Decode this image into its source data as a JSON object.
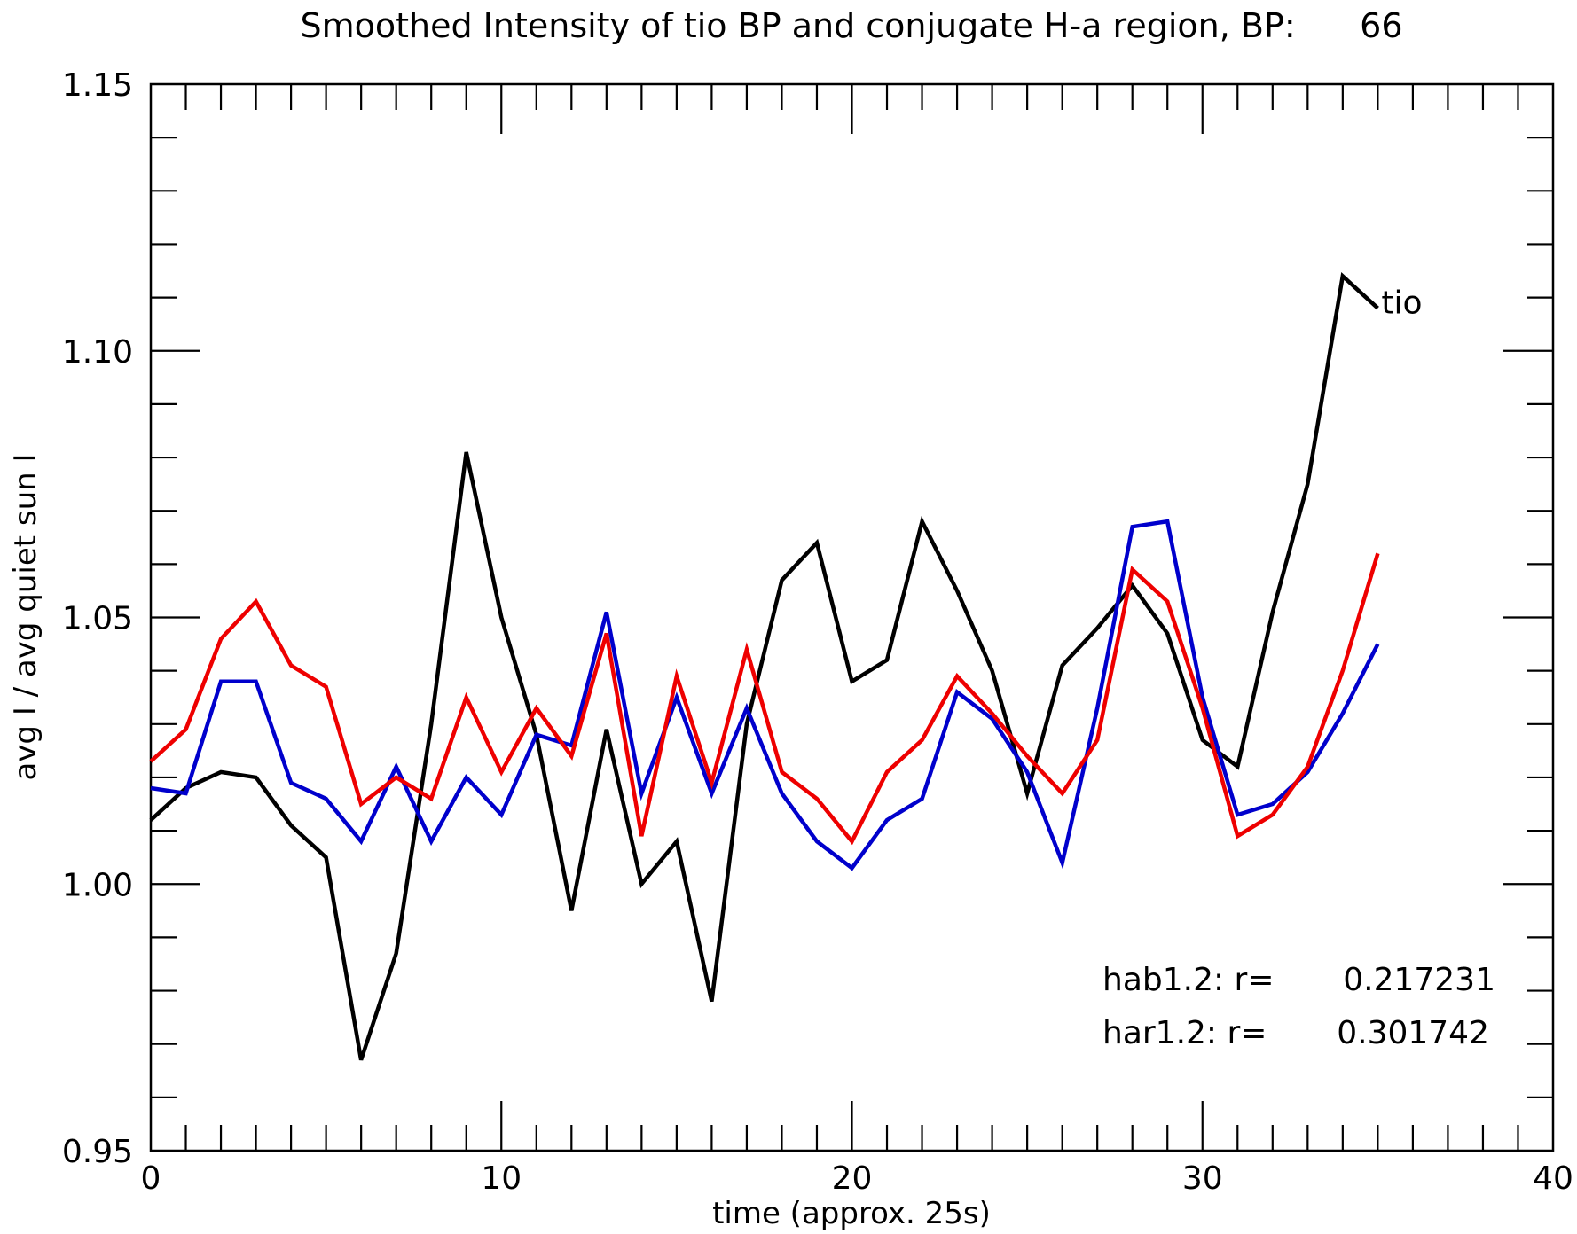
{
  "chart_data": {
    "type": "line",
    "title": "Smoothed Intensity of tio BP and conjugate H-a region, BP:      66",
    "xlabel": "time (approx. 25s)",
    "ylabel": "avg I / avg quiet sun I",
    "xlim": [
      0,
      40
    ],
    "ylim": [
      0.95,
      1.15
    ],
    "x_ticks": [
      "0",
      "10",
      "20",
      "30",
      "40"
    ],
    "y_ticks": [
      "0.95",
      "1.00",
      "1.05",
      "1.10",
      "1.15"
    ],
    "grid": false,
    "annotations": [
      {
        "label": "hab1.2: r=",
        "value": "0.217231"
      },
      {
        "label": "har1.2: r=",
        "value": "0.301742"
      }
    ],
    "series": [
      {
        "name": "tio",
        "color": "#000000",
        "x": [
          0,
          1,
          2,
          3,
          4,
          5,
          6,
          7,
          8,
          9,
          10,
          11,
          12,
          13,
          14,
          15,
          16,
          17,
          18,
          19,
          20,
          21,
          22,
          23,
          24,
          25,
          26,
          27,
          28,
          29,
          30,
          31,
          32,
          33,
          34,
          35
        ],
        "values": [
          1.012,
          1.018,
          1.021,
          1.02,
          1.011,
          1.005,
          0.967,
          0.987,
          1.03,
          1.081,
          1.05,
          1.028,
          0.995,
          1.029,
          1.0,
          1.008,
          0.978,
          1.03,
          1.057,
          1.064,
          1.038,
          1.042,
          1.068,
          1.055,
          1.04,
          1.017,
          1.041,
          1.048,
          1.056,
          1.047,
          1.027,
          1.022,
          1.051,
          1.075,
          1.114,
          1.108
        ]
      },
      {
        "name": "",
        "color": "#0000cc",
        "x": [
          0,
          1,
          2,
          3,
          4,
          5,
          6,
          7,
          8,
          9,
          10,
          11,
          12,
          13,
          14,
          15,
          16,
          17,
          18,
          19,
          20,
          21,
          22,
          23,
          24,
          25,
          26,
          27,
          28,
          29,
          30,
          31,
          32,
          33,
          34,
          35
        ],
        "values": [
          1.018,
          1.017,
          1.038,
          1.038,
          1.019,
          1.016,
          1.008,
          1.022,
          1.008,
          1.02,
          1.013,
          1.028,
          1.026,
          1.051,
          1.017,
          1.035,
          1.017,
          1.033,
          1.017,
          1.008,
          1.003,
          1.012,
          1.016,
          1.036,
          1.031,
          1.021,
          1.004,
          1.033,
          1.067,
          1.068,
          1.035,
          1.013,
          1.015,
          1.021,
          1.032,
          1.045
        ]
      },
      {
        "name": "",
        "color": "#ee0000",
        "x": [
          0,
          1,
          2,
          3,
          4,
          5,
          6,
          7,
          8,
          9,
          10,
          11,
          12,
          13,
          14,
          15,
          16,
          17,
          18,
          19,
          20,
          21,
          22,
          23,
          24,
          25,
          26,
          27,
          28,
          29,
          30,
          31,
          32,
          33,
          34,
          35
        ],
        "values": [
          1.023,
          1.029,
          1.046,
          1.053,
          1.041,
          1.037,
          1.015,
          1.02,
          1.016,
          1.035,
          1.021,
          1.033,
          1.024,
          1.047,
          1.009,
          1.039,
          1.019,
          1.044,
          1.021,
          1.016,
          1.008,
          1.021,
          1.027,
          1.039,
          1.032,
          1.024,
          1.017,
          1.027,
          1.059,
          1.053,
          1.033,
          1.009,
          1.013,
          1.022,
          1.04,
          1.062
        ]
      }
    ]
  }
}
